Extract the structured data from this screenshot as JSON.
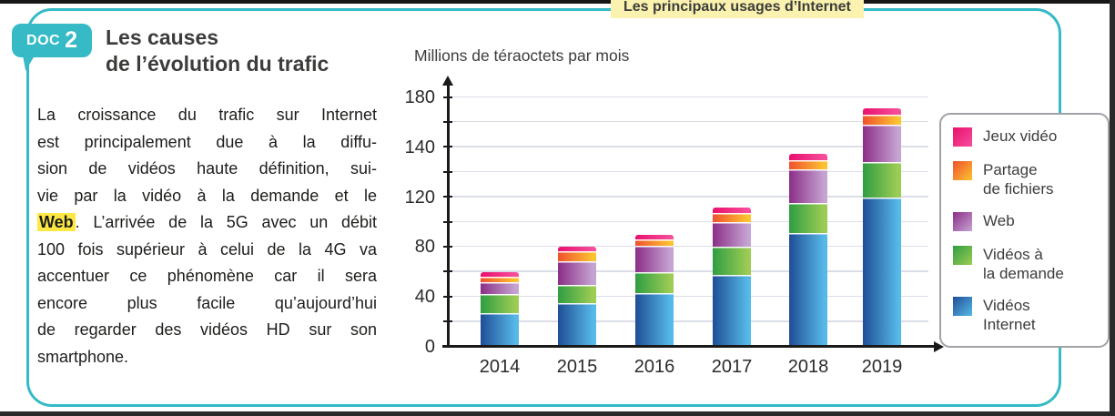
{
  "doc": {
    "badge_label": "DOC",
    "badge_number": "2",
    "title_line1": "Les causes",
    "title_line2": "de l’évolution du trafic",
    "body_lines": [
      [
        {
          "t": "La croissance du trafic sur Internet"
        }
      ],
      [
        {
          "t": "est principalement due à la diffu-"
        }
      ],
      [
        {
          "t": "sion de vidéos haute définition, sui-"
        }
      ],
      [
        {
          "t": "vie par la vidéo à la demande et le"
        }
      ],
      [
        {
          "t": "Web",
          "hl": true
        },
        {
          "t": ". L’arrivée de la 5G avec un débit"
        }
      ],
      [
        {
          "t": "100 fois supérieur à celui de la 4G va"
        }
      ],
      [
        {
          "t": "accentuer ce phénomène car il sera"
        }
      ],
      [
        {
          "t": "encore plus facile qu’aujourd’hui"
        }
      ],
      [
        {
          "t": "de regarder des vidéos HD sur son"
        }
      ],
      [
        {
          "t": "smartphone."
        }
      ]
    ]
  },
  "caption": {
    "label": "Les principaux usages d’Internet"
  },
  "frame_color": "#35BAC6",
  "highlight_color": "#FFE843",
  "caption_bg_color": "#FAF2AE",
  "chart_data": {
    "type": "bar",
    "stacked": true,
    "title": "Millions de téraoctets par mois",
    "categories": [
      "2014",
      "2015",
      "2016",
      "2017",
      "2018",
      "2019"
    ],
    "series": [
      {
        "name": "Vidéos Internet",
        "colors": [
          "#1F4E96",
          "#56B9E8"
        ],
        "values": [
          27,
          35,
          43,
          58,
          91,
          120
        ]
      },
      {
        "name": "Vidéos à la demande",
        "colors": [
          "#2F9E41",
          "#9DCC55"
        ],
        "values": [
          15,
          15,
          17,
          22,
          24,
          28
        ]
      },
      {
        "name": "Web",
        "colors": [
          "#8C2E87",
          "#C5A4D2"
        ],
        "values": [
          10,
          19,
          21,
          20,
          27,
          30
        ]
      },
      {
        "name": "Partage de fichiers",
        "colors": [
          "#F0512D",
          "#FCC331"
        ],
        "values": [
          4,
          8,
          5,
          7,
          8,
          8
        ]
      },
      {
        "name": "Jeux vidéo",
        "colors": [
          "#E9106D",
          "#F64E9B"
        ],
        "values": [
          4,
          3,
          4,
          5,
          5,
          5
        ]
      }
    ],
    "totals": [
      60,
      80,
      90,
      112,
      155,
      191
    ],
    "y_axis": {
      "tick_labels_printed": [
        "0",
        "40",
        "80",
        "120",
        "140",
        "180"
      ],
      "units_per_gridline": 20,
      "gridlines": 11,
      "range": [
        0,
        200
      ],
      "grid": true
    },
    "legend": {
      "position": "right",
      "items": [
        {
          "series": "Jeux vidéo",
          "lines": [
            "Jeux vidéo"
          ]
        },
        {
          "series": "Partage de fichiers",
          "lines": [
            "Partage",
            "de fichiers"
          ]
        },
        {
          "series": "Web",
          "lines": [
            "Web"
          ]
        },
        {
          "series": "Vidéos à la demande",
          "lines": [
            "Vidéos à",
            "la demande"
          ]
        },
        {
          "series": "Vidéos Internet",
          "lines": [
            "Vidéos",
            "Internet"
          ]
        }
      ]
    }
  }
}
